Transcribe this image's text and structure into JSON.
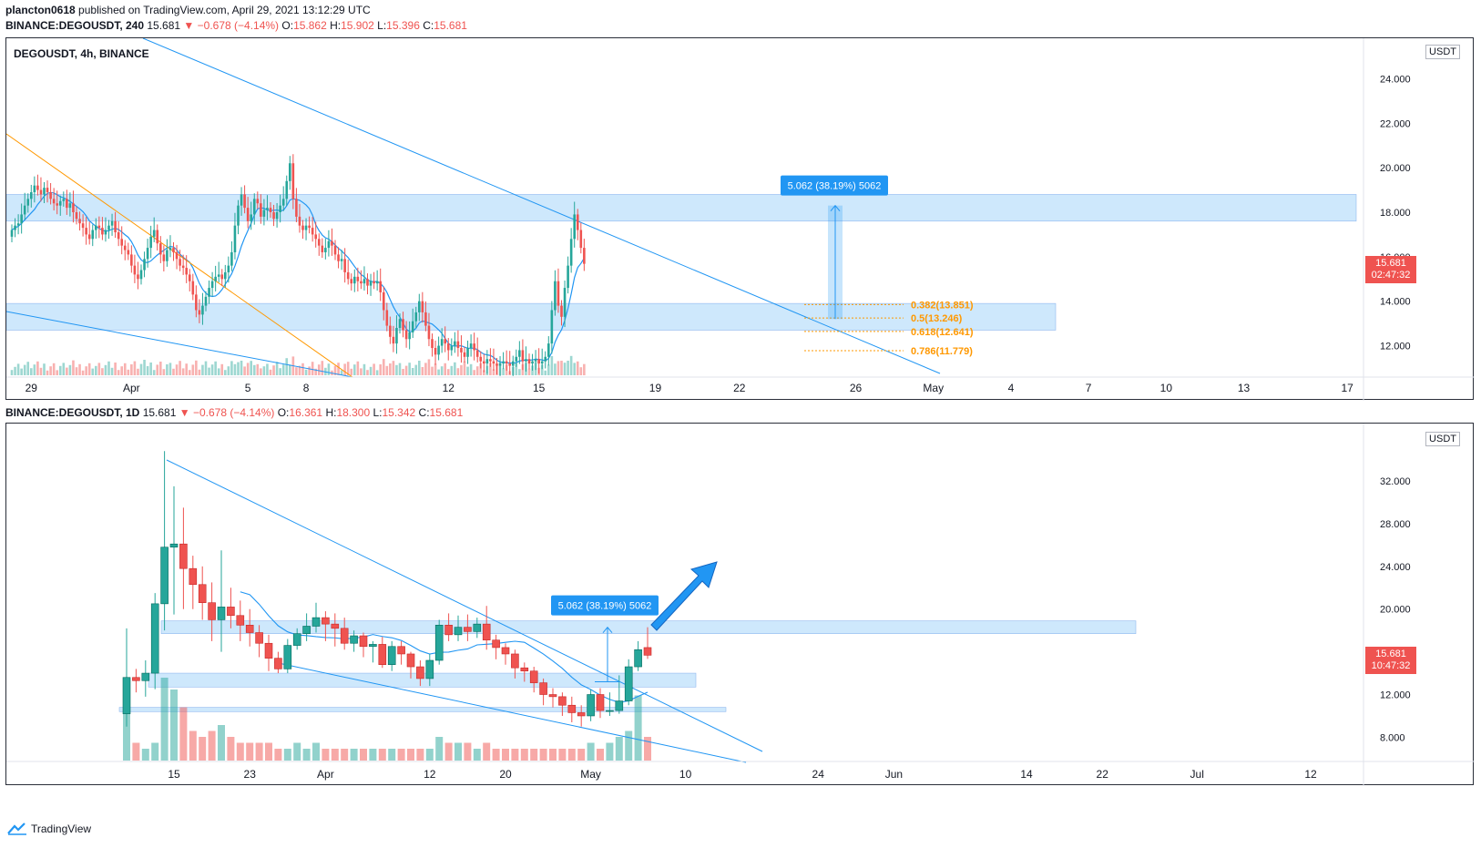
{
  "publish_line": {
    "user": "plancton0618",
    "text": "published on TradingView.com, April 29, 2021 13:12:29 UTC"
  },
  "top_chart": {
    "header": {
      "symbol": "BINANCE:DEGOUSDT, 240",
      "last": "15.681",
      "change": "−0.678 (−4.14%)",
      "o": "15.862",
      "h": "15.902",
      "l": "15.396",
      "c": "15.681"
    },
    "legend": "DEGOUSDT, 4h, BINANCE",
    "currency_badge": "USDT",
    "price_badge": "15.681",
    "countdown": "02:47:32",
    "measure_label": "5.062 (38.19%) 5062",
    "fib_labels": [
      "0.382(13.851)",
      "0.5(13.246)",
      "0.618(12.641)",
      "0.786(11.779)"
    ]
  },
  "bottom_chart": {
    "header": {
      "symbol": "BINANCE:DEGOUSDT, 1D",
      "last": "15.681",
      "change": "−0.678 (−4.14%)",
      "o": "16.361",
      "h": "18.300",
      "l": "15.342",
      "c": "15.681"
    },
    "currency_badge": "USDT",
    "price_badge": "15.681",
    "countdown": "10:47:32",
    "measure_label": "5.062 (38.19%) 5062"
  },
  "footer": {
    "brand": "TradingView"
  },
  "colors": {
    "up": "#26a69a",
    "down": "#ef5350",
    "trend": "#2196f3",
    "zone": "rgba(33,150,243,0.22)",
    "fib": "#ff9800",
    "ma": "#2196f3"
  },
  "chart_data": [
    {
      "type": "candlestick",
      "title": "DEGOUSDT, 4h, BINANCE",
      "ylim": [
        11.0,
        25.0
      ],
      "yticks": [
        12.0,
        14.0,
        16.0,
        18.0,
        20.0,
        22.0,
        24.0
      ],
      "ytick_labels": [
        "12.000",
        "14.000",
        "16.000",
        "18.000",
        "20.000",
        "22.000",
        "24.000"
      ],
      "xtick_labels": [
        "29",
        "Apr",
        "5",
        "8",
        "12",
        "15",
        "19",
        "22",
        "26",
        "May",
        "4",
        "7",
        "10",
        "13",
        "17"
      ],
      "xtick_index": [
        6,
        37,
        73,
        91,
        135,
        163,
        199,
        225,
        261,
        285,
        309,
        333,
        357,
        381,
        413
      ],
      "support_zones": [
        [
          17.6,
          18.8
        ],
        [
          12.7,
          13.9
        ]
      ],
      "fib_levels": [
        13.851,
        13.246,
        12.641,
        11.779
      ],
      "measure": {
        "from": 13.2,
        "to": 18.3,
        "label": "5.062 (38.19%) 5062"
      },
      "last_price": 15.681,
      "closes": [
        17.2,
        17.4,
        17.5,
        17.9,
        18.3,
        18.6,
        18.9,
        19.2,
        19.0,
        18.8,
        19.1,
        18.9,
        18.6,
        18.4,
        18.3,
        18.5,
        18.6,
        18.2,
        18.4,
        18.0,
        17.7,
        17.5,
        17.3,
        17.0,
        16.8,
        17.2,
        17.4,
        17.3,
        17.0,
        17.2,
        17.4,
        17.6,
        17.1,
        16.8,
        16.5,
        16.3,
        16.1,
        15.6,
        15.2,
        15.0,
        15.4,
        15.9,
        16.4,
        16.9,
        17.2,
        16.6,
        16.1,
        15.8,
        16.3,
        16.4,
        16.2,
        15.9,
        15.6,
        15.5,
        15.2,
        14.9,
        14.3,
        13.6,
        13.4,
        13.8,
        14.2,
        14.6,
        14.9,
        15.1,
        15.2,
        15.0,
        15.3,
        15.6,
        16.2,
        17.4,
        18.3,
        18.8,
        18.2,
        17.6,
        17.9,
        18.6,
        18.4,
        17.8,
        18.1,
        18.2,
        18.0,
        17.7,
        18.0,
        18.3,
        18.6,
        19.4,
        20.2,
        18.6,
        17.8,
        17.4,
        17.2,
        17.4,
        17.3,
        17.0,
        16.8,
        16.5,
        16.2,
        16.4,
        16.7,
        16.5,
        16.1,
        15.8,
        15.9,
        15.3,
        15.0,
        14.8,
        15.1,
        14.9,
        14.8,
        15.0,
        14.7,
        14.9,
        14.8,
        14.9,
        14.4,
        13.6,
        12.9,
        12.4,
        12.1,
        12.8,
        13.2,
        12.7,
        12.3,
        12.6,
        13.1,
        13.5,
        14.0,
        13.5,
        12.9,
        12.3,
        11.9,
        11.6,
        12.0,
        12.3,
        12.1,
        11.8,
        12.0,
        12.2,
        11.9,
        11.7,
        11.5,
        11.9,
        12.1,
        11.8,
        11.5,
        11.3,
        11.2,
        11.4,
        11.3,
        11.2,
        11.1,
        11.2,
        11.3,
        11.2,
        11.1,
        11.3,
        11.5,
        11.8,
        11.3,
        11.4,
        11.2,
        11.3,
        11.4,
        11.2,
        11.3,
        11.5,
        12.1,
        13.6,
        14.9,
        13.8,
        13.3,
        14.6,
        15.6,
        16.8,
        17.9,
        17.2,
        16.4,
        15.681
      ]
    },
    {
      "type": "candlestick",
      "ylim": [
        6.5,
        35.5
      ],
      "yticks": [
        8.0,
        12.0,
        16.0,
        20.0,
        24.0,
        28.0,
        32.0
      ],
      "ytick_labels": [
        "8.000",
        "12.000",
        "16.000",
        "20.000",
        "24.000",
        "28.000",
        "32.000"
      ],
      "xtick_labels": [
        "15",
        "23",
        "Apr",
        "12",
        "20",
        "May",
        "10",
        "24",
        "Jun",
        "14",
        "22",
        "Jul",
        "12"
      ],
      "xtick_index": [
        5,
        13,
        21,
        32,
        40,
        49,
        59,
        73,
        81,
        95,
        103,
        113,
        125
      ],
      "support_zones": [
        [
          17.7,
          18.9
        ],
        [
          12.7,
          14.0
        ],
        [
          10.4,
          10.8
        ]
      ],
      "measure": {
        "from": 13.2,
        "to": 18.3,
        "label": "5.062 (38.19%) 5062"
      },
      "last_price": 15.681,
      "candles": [
        [
          10.2,
          13.6,
          9.0,
          18.2
        ],
        [
          13.6,
          13.3,
          12.2,
          14.4
        ],
        [
          13.3,
          14.0,
          11.8,
          15.2
        ],
        [
          14.0,
          20.5,
          12.5,
          21.5
        ],
        [
          20.5,
          25.8,
          18.0,
          34.8
        ],
        [
          25.8,
          26.1,
          19.5,
          31.5
        ],
        [
          26.1,
          23.8,
          20.0,
          29.5
        ],
        [
          23.8,
          22.3,
          20.0,
          25.0
        ],
        [
          22.3,
          20.6,
          19.0,
          24.0
        ],
        [
          20.6,
          19.0,
          17.0,
          22.5
        ],
        [
          19.0,
          20.2,
          16.0,
          25.5
        ],
        [
          20.2,
          19.4,
          18.2,
          22.0
        ],
        [
          19.4,
          18.5,
          17.0,
          20.8
        ],
        [
          18.5,
          17.8,
          16.5,
          20.0
        ],
        [
          17.8,
          16.8,
          15.5,
          18.5
        ],
        [
          16.8,
          15.4,
          14.2,
          17.6
        ],
        [
          15.4,
          14.4,
          14.0,
          16.0
        ],
        [
          14.4,
          16.6,
          14.0,
          17.2
        ],
        [
          16.6,
          17.7,
          16.2,
          18.2
        ],
        [
          17.7,
          18.4,
          17.0,
          19.6
        ],
        [
          18.4,
          19.2,
          17.8,
          20.6
        ],
        [
          19.2,
          18.6,
          17.0,
          19.8
        ],
        [
          18.6,
          18.2,
          16.5,
          19.6
        ],
        [
          18.2,
          16.8,
          16.2,
          19.2
        ],
        [
          16.8,
          17.5,
          16.0,
          18.0
        ],
        [
          17.5,
          16.5,
          15.5,
          17.8
        ],
        [
          16.5,
          16.7,
          15.0,
          17.0
        ],
        [
          16.7,
          14.8,
          14.5,
          17.4
        ],
        [
          14.8,
          16.5,
          14.2,
          17.0
        ],
        [
          16.5,
          15.8,
          14.8,
          17.0
        ],
        [
          15.8,
          14.6,
          13.5,
          16.0
        ],
        [
          14.6,
          13.5,
          12.8,
          15.2
        ],
        [
          13.5,
          15.2,
          12.8,
          15.8
        ],
        [
          15.2,
          18.5,
          14.8,
          19.0
        ],
        [
          18.5,
          17.6,
          17.0,
          19.6
        ],
        [
          17.6,
          18.3,
          17.0,
          19.4
        ],
        [
          18.3,
          17.9,
          17.0,
          19.5
        ],
        [
          17.9,
          18.6,
          17.3,
          19.2
        ],
        [
          18.6,
          17.1,
          16.2,
          20.3
        ],
        [
          17.1,
          16.4,
          15.3,
          17.6
        ],
        [
          16.4,
          15.8,
          14.8,
          16.8
        ],
        [
          15.8,
          14.5,
          13.5,
          16.2
        ],
        [
          14.5,
          14.2,
          13.2,
          15.0
        ],
        [
          14.2,
          13.1,
          12.2,
          14.6
        ],
        [
          13.1,
          12.0,
          11.0,
          13.5
        ],
        [
          12.0,
          11.8,
          10.8,
          12.6
        ],
        [
          11.8,
          11.0,
          10.0,
          12.2
        ],
        [
          11.0,
          10.3,
          9.4,
          11.8
        ],
        [
          10.3,
          10.0,
          9.0,
          11.0
        ],
        [
          10.0,
          12.0,
          9.5,
          12.5
        ],
        [
          12.0,
          10.5,
          9.8,
          12.6
        ],
        [
          10.5,
          10.5,
          10.0,
          12.2
        ],
        [
          10.5,
          11.4,
          10.2,
          13.8
        ],
        [
          11.4,
          14.6,
          11.0,
          15.3
        ],
        [
          14.6,
          16.2,
          14.2,
          17.0
        ],
        [
          16.4,
          15.681,
          15.342,
          18.3
        ]
      ],
      "volumes": [
        9,
        3,
        2,
        3,
        14,
        12,
        9,
        5,
        4,
        5,
        6,
        4,
        3,
        3,
        3,
        3,
        2,
        2,
        3,
        2,
        3,
        2,
        2,
        2,
        2,
        2,
        2,
        2,
        2,
        2,
        2,
        2,
        2,
        4,
        3,
        3,
        3,
        2,
        3,
        2,
        2,
        2,
        2,
        2,
        2,
        2,
        2,
        2,
        2,
        3,
        2,
        3,
        4,
        5,
        11,
        4
      ]
    }
  ]
}
